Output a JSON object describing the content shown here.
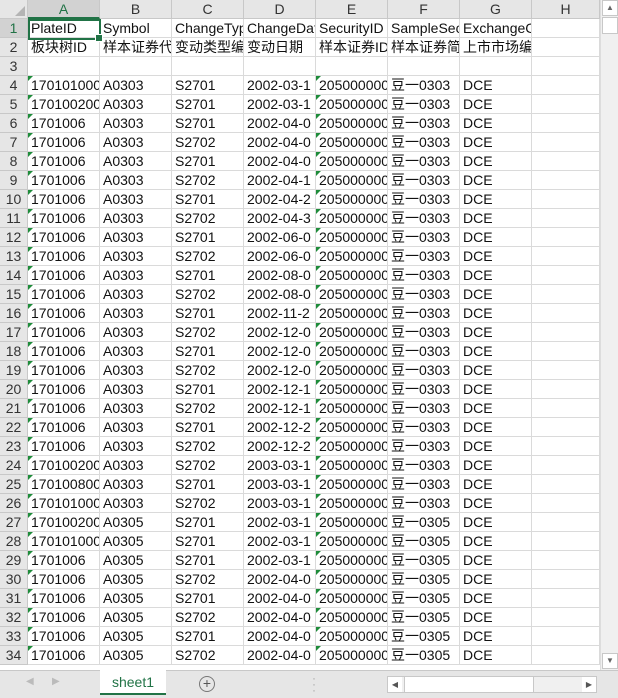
{
  "columns": [
    "A",
    "B",
    "C",
    "D",
    "E",
    "F",
    "G",
    "H"
  ],
  "active_column": "A",
  "active_row": 1,
  "rows": [
    {
      "n": "1",
      "c": [
        "PlateID",
        "Symbol",
        "ChangeType",
        "ChangeDate",
        "SecurityID",
        "SampleSecurity",
        "ExchangeCode",
        ""
      ]
    },
    {
      "n": "2",
      "c": [
        "板块树ID",
        "样本证券代码",
        "变动类型编码",
        "变动日期",
        "样本证券ID",
        "样本证券简称",
        "上市市场编码",
        ""
      ]
    },
    {
      "n": "3",
      "c": [
        "",
        "",
        "",
        "",
        "",
        "",
        "",
        ""
      ]
    },
    {
      "n": "4",
      "c": [
        "170101000",
        "A0303",
        "S2701",
        "2002-03-1",
        "205000000",
        "豆一0303",
        "DCE",
        ""
      ]
    },
    {
      "n": "5",
      "c": [
        "170100200",
        "A0303",
        "S2701",
        "2002-03-1",
        "205000000",
        "豆一0303",
        "DCE",
        ""
      ]
    },
    {
      "n": "6",
      "c": [
        "1701006",
        "A0303",
        "S2701",
        "2002-04-0",
        "205000000",
        "豆一0303",
        "DCE",
        ""
      ]
    },
    {
      "n": "7",
      "c": [
        "1701006",
        "A0303",
        "S2702",
        "2002-04-0",
        "205000000",
        "豆一0303",
        "DCE",
        ""
      ]
    },
    {
      "n": "8",
      "c": [
        "1701006",
        "A0303",
        "S2701",
        "2002-04-0",
        "205000000",
        "豆一0303",
        "DCE",
        ""
      ]
    },
    {
      "n": "9",
      "c": [
        "1701006",
        "A0303",
        "S2702",
        "2002-04-1",
        "205000000",
        "豆一0303",
        "DCE",
        ""
      ]
    },
    {
      "n": "10",
      "c": [
        "1701006",
        "A0303",
        "S2701",
        "2002-04-2",
        "205000000",
        "豆一0303",
        "DCE",
        ""
      ]
    },
    {
      "n": "11",
      "c": [
        "1701006",
        "A0303",
        "S2702",
        "2002-04-3",
        "205000000",
        "豆一0303",
        "DCE",
        ""
      ]
    },
    {
      "n": "12",
      "c": [
        "1701006",
        "A0303",
        "S2701",
        "2002-06-0",
        "205000000",
        "豆一0303",
        "DCE",
        ""
      ]
    },
    {
      "n": "13",
      "c": [
        "1701006",
        "A0303",
        "S2702",
        "2002-06-0",
        "205000000",
        "豆一0303",
        "DCE",
        ""
      ]
    },
    {
      "n": "14",
      "c": [
        "1701006",
        "A0303",
        "S2701",
        "2002-08-0",
        "205000000",
        "豆一0303",
        "DCE",
        ""
      ]
    },
    {
      "n": "15",
      "c": [
        "1701006",
        "A0303",
        "S2702",
        "2002-08-0",
        "205000000",
        "豆一0303",
        "DCE",
        ""
      ]
    },
    {
      "n": "16",
      "c": [
        "1701006",
        "A0303",
        "S2701",
        "2002-11-2",
        "205000000",
        "豆一0303",
        "DCE",
        ""
      ]
    },
    {
      "n": "17",
      "c": [
        "1701006",
        "A0303",
        "S2702",
        "2002-12-0",
        "205000000",
        "豆一0303",
        "DCE",
        ""
      ]
    },
    {
      "n": "18",
      "c": [
        "1701006",
        "A0303",
        "S2701",
        "2002-12-0",
        "205000000",
        "豆一0303",
        "DCE",
        ""
      ]
    },
    {
      "n": "19",
      "c": [
        "1701006",
        "A0303",
        "S2702",
        "2002-12-0",
        "205000000",
        "豆一0303",
        "DCE",
        ""
      ]
    },
    {
      "n": "20",
      "c": [
        "1701006",
        "A0303",
        "S2701",
        "2002-12-1",
        "205000000",
        "豆一0303",
        "DCE",
        ""
      ]
    },
    {
      "n": "21",
      "c": [
        "1701006",
        "A0303",
        "S2702",
        "2002-12-1",
        "205000000",
        "豆一0303",
        "DCE",
        ""
      ]
    },
    {
      "n": "22",
      "c": [
        "1701006",
        "A0303",
        "S2701",
        "2002-12-2",
        "205000000",
        "豆一0303",
        "DCE",
        ""
      ]
    },
    {
      "n": "23",
      "c": [
        "1701006",
        "A0303",
        "S2702",
        "2002-12-2",
        "205000000",
        "豆一0303",
        "DCE",
        ""
      ]
    },
    {
      "n": "24",
      "c": [
        "170100200",
        "A0303",
        "S2702",
        "2003-03-1",
        "205000000",
        "豆一0303",
        "DCE",
        ""
      ]
    },
    {
      "n": "25",
      "c": [
        "170100800",
        "A0303",
        "S2701",
        "2003-03-1",
        "205000000",
        "豆一0303",
        "DCE",
        ""
      ]
    },
    {
      "n": "26",
      "c": [
        "170101000",
        "A0303",
        "S2702",
        "2003-03-1",
        "205000000",
        "豆一0303",
        "DCE",
        ""
      ]
    },
    {
      "n": "27",
      "c": [
        "170100200",
        "A0305",
        "S2701",
        "2002-03-1",
        "205000000",
        "豆一0305",
        "DCE",
        ""
      ]
    },
    {
      "n": "28",
      "c": [
        "170101000",
        "A0305",
        "S2701",
        "2002-03-1",
        "205000000",
        "豆一0305",
        "DCE",
        ""
      ]
    },
    {
      "n": "29",
      "c": [
        "1701006",
        "A0305",
        "S2701",
        "2002-03-1",
        "205000000",
        "豆一0305",
        "DCE",
        ""
      ]
    },
    {
      "n": "30",
      "c": [
        "1701006",
        "A0305",
        "S2702",
        "2002-04-0",
        "205000000",
        "豆一0305",
        "DCE",
        ""
      ]
    },
    {
      "n": "31",
      "c": [
        "1701006",
        "A0305",
        "S2701",
        "2002-04-0",
        "205000000",
        "豆一0305",
        "DCE",
        ""
      ]
    },
    {
      "n": "32",
      "c": [
        "1701006",
        "A0305",
        "S2702",
        "2002-04-0",
        "205000000",
        "豆一0305",
        "DCE",
        ""
      ]
    },
    {
      "n": "33",
      "c": [
        "1701006",
        "A0305",
        "S2701",
        "2002-04-0",
        "205000000",
        "豆一0305",
        "DCE",
        ""
      ]
    },
    {
      "n": "34",
      "c": [
        "1701006",
        "A0305",
        "S2702",
        "2002-04-0",
        "205000000",
        "豆一0305",
        "DCE",
        ""
      ]
    }
  ],
  "sheet_tabs": [
    {
      "label": "sheet1",
      "active": true
    }
  ],
  "add_sheet_icon": "plus-circle-icon",
  "accent_color": "#217346"
}
